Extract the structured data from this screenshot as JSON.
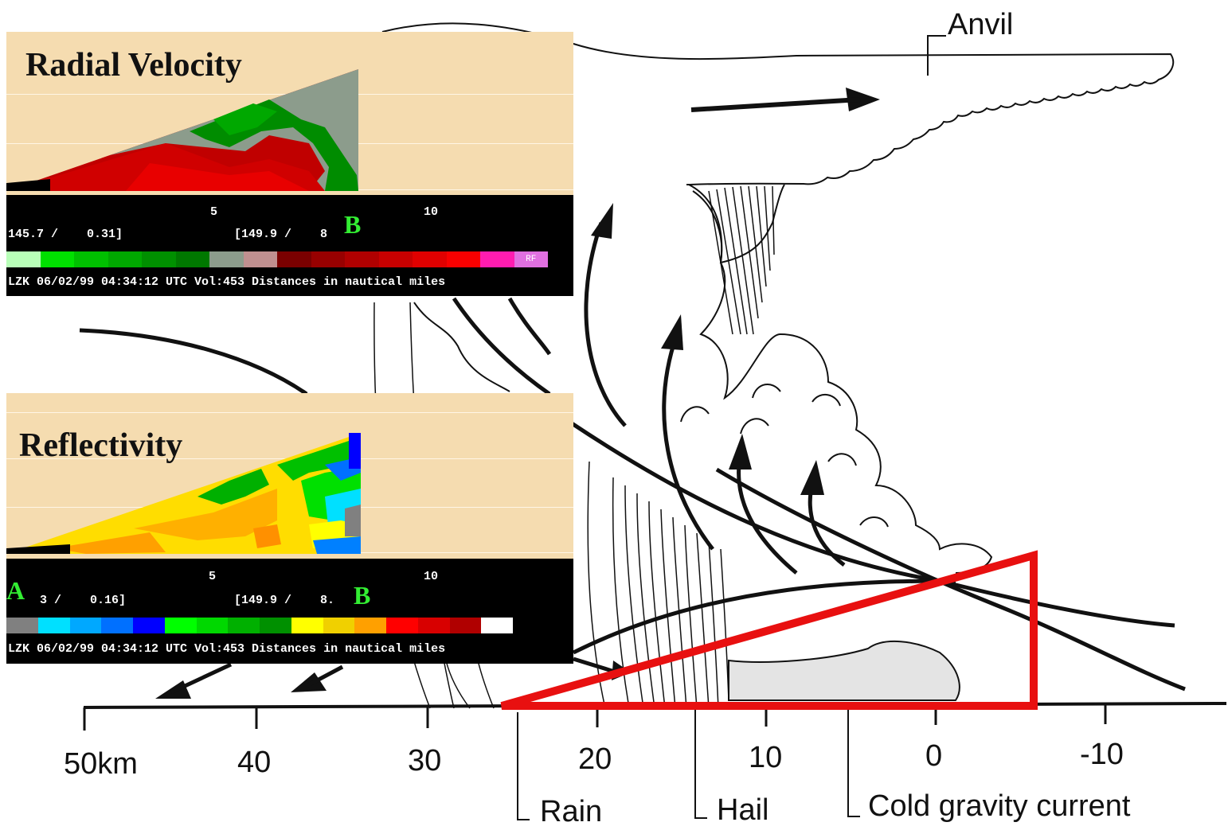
{
  "axis": {
    "ticks": [
      "50km",
      "40",
      "30",
      "20",
      "10",
      "0",
      "-10"
    ]
  },
  "callouts": {
    "anvil": "Anvil",
    "rain": "Rain",
    "hail": "Hail",
    "cold_gravity_current": "Cold gravity current"
  },
  "radial_velocity_panel": {
    "title": "Radial Velocity",
    "tick_5": "5",
    "tick_10": "10",
    "left_readout": "145.7 /    0.31]",
    "right_readout": "[149.9 /    8",
    "point_b": "B",
    "colorbar_end_label": "RF",
    "colorbar_colors": [
      "#b8ffb8",
      "#00e000",
      "#00c000",
      "#00a800",
      "#009000",
      "#007800",
      "#8c9c8c",
      "#c09090",
      "#7a0000",
      "#980000",
      "#b00000",
      "#c80000",
      "#e00000",
      "#f80000",
      "#ff1cb0",
      "#e070e0"
    ],
    "footer": "LZK 06/02/99 04:34:12 UTC Vol:453 Distances in nautical miles"
  },
  "reflectivity_panel": {
    "title": "Reflectivity",
    "tick_5": "5",
    "tick_10": "10",
    "left_readout": "3 /    0.16]",
    "right_readout": "[149.9 /    8.",
    "point_a": "A",
    "point_b": "B",
    "colorbar_colors": [
      "#808080",
      "#00e0ff",
      "#00a8ff",
      "#0070ff",
      "#0000ff",
      "#00ff00",
      "#00d800",
      "#00b000",
      "#009000",
      "#ffff00",
      "#f0d000",
      "#ffa000",
      "#ff0000",
      "#d80000",
      "#b00000",
      "#ffffff"
    ],
    "footer": "LZK 06/02/99 04:34:12 UTC Vol:453 Distances in nautical miles"
  },
  "colors": {
    "highlight_triangle": "#e81010",
    "ink": "#111111",
    "panel_bg": "#f5dcb0"
  }
}
